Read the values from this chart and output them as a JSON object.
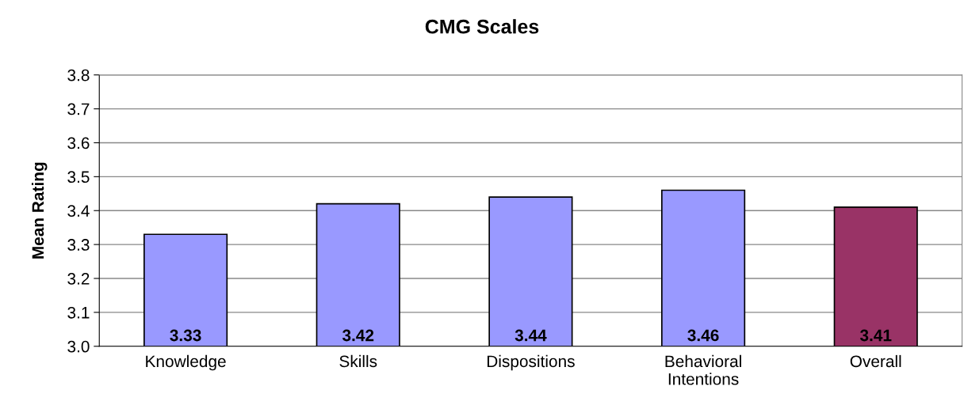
{
  "chart_data": {
    "type": "bar",
    "title": "CMG Scales",
    "ylabel": "Mean Rating",
    "categories": [
      "Knowledge",
      "Skills",
      "Dispositions",
      "Behavioral\nIntentions",
      "Overall"
    ],
    "values": [
      3.33,
      3.42,
      3.44,
      3.46,
      3.41
    ],
    "colors": [
      "#9999ff",
      "#9999ff",
      "#9999ff",
      "#9999ff",
      "#993366"
    ],
    "ylim": [
      3.0,
      3.8
    ],
    "yticks": [
      {
        "value": 3.0,
        "label": "3.0"
      },
      3.1,
      3.2,
      3.3,
      3.4,
      3.5,
      3.6,
      3.7,
      3.8
    ],
    "grid": "y",
    "data_labels": true
  }
}
